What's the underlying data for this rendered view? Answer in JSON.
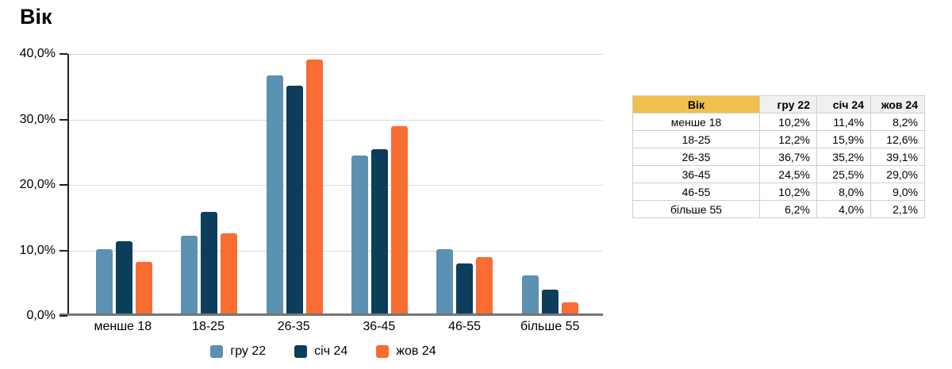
{
  "page": {
    "title": "Вік"
  },
  "colors": {
    "series_blue": "#5B92B1",
    "series_navy": "#0C3E5C",
    "series_orange": "#F96C32",
    "table_header_yellow": "#EFC04D",
    "table_header_gray": "#F0F0F0",
    "gridline": "#D9D9D9",
    "axis_x": "#757575",
    "axis_y": "#212121"
  },
  "chart_data": {
    "type": "bar",
    "title": "Вік",
    "categories": [
      "менше 18",
      "18-25",
      "26-35",
      "36-45",
      "46-55",
      "більше 55"
    ],
    "series": [
      {
        "name": "гру 22",
        "color": "#5B92B1",
        "values": [
          10.2,
          12.2,
          36.7,
          24.5,
          10.2,
          6.2
        ]
      },
      {
        "name": "січ 24",
        "color": "#0C3E5C",
        "values": [
          11.4,
          15.9,
          35.2,
          25.5,
          8.0,
          4.0
        ]
      },
      {
        "name": "жов 24",
        "color": "#F96C32",
        "values": [
          8.2,
          12.6,
          39.1,
          29.0,
          9.0,
          2.1
        ]
      }
    ],
    "y_tick_labels": [
      "40,0%",
      "30,0%",
      "20,0%",
      "10,0%",
      "0,0%"
    ],
    "ylim": [
      0,
      40
    ],
    "grid": true,
    "legend_position": "bottom"
  },
  "table": {
    "header": [
      "Вік",
      "гру 22",
      "січ 24",
      "жов 24"
    ],
    "rows": [
      [
        "менше 18",
        "10,2%",
        "11,4%",
        "8,2%"
      ],
      [
        "18-25",
        "12,2%",
        "15,9%",
        "12,6%"
      ],
      [
        "26-35",
        "36,7%",
        "35,2%",
        "39,1%"
      ],
      [
        "36-45",
        "24,5%",
        "25,5%",
        "29,0%"
      ],
      [
        "46-55",
        "10,2%",
        "8,0%",
        "9,0%"
      ],
      [
        "більше 55",
        "6,2%",
        "4,0%",
        "2,1%"
      ]
    ]
  }
}
